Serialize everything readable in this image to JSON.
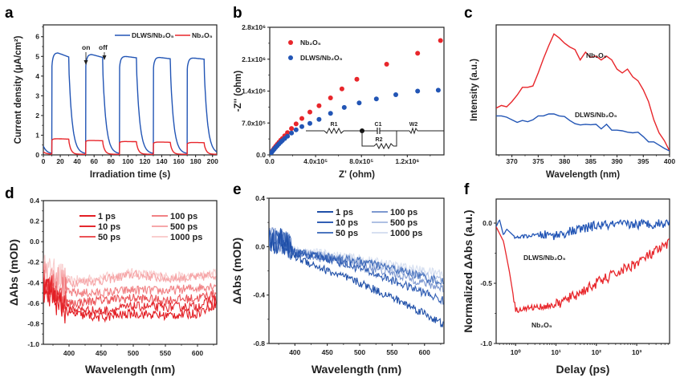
{
  "chart_data": [
    {
      "id": "a",
      "type": "line",
      "panel_label": "a",
      "xlabel": "Irradiation time (s)",
      "ylabel": "Current density (μA/cm²)",
      "xlim": [
        0,
        205
      ],
      "ylim": [
        0,
        6.6
      ],
      "xticks": [
        0,
        20,
        40,
        60,
        80,
        100,
        120,
        140,
        160,
        180,
        200
      ],
      "yticks": [
        0,
        1,
        2,
        3,
        4,
        5,
        6
      ],
      "legend": "top-right",
      "on_off_cycles": [
        [
          10,
          30
        ],
        [
          50,
          70
        ],
        [
          90,
          110
        ],
        [
          130,
          150
        ],
        [
          170,
          190
        ]
      ],
      "annotations": [
        {
          "text": "on",
          "x": 50,
          "y": 4.5
        },
        {
          "text": "off",
          "x": 70,
          "y": 4.95
        }
      ],
      "series": [
        {
          "name": "DLWS/Nb₂O₅",
          "color": "#2255b5",
          "plateau_start": [
            4.5,
            4.5,
            4.45,
            4.4,
            4.35
          ],
          "plateau_peak": [
            5.18,
            5.1,
            5.0,
            4.95,
            4.92
          ],
          "plateau_end": [
            4.97,
            4.95,
            4.93,
            4.88,
            4.86
          ],
          "baseline_start": 0.45,
          "baseline": 0.05
        },
        {
          "name": "Nb₂O₅",
          "color": "#e8262b",
          "plateau_start": [
            0.75,
            0.68,
            0.62,
            0.58,
            0.55
          ],
          "plateau_peak": [
            0.82,
            0.73,
            0.68,
            0.65,
            0.63
          ],
          "plateau_end": [
            0.8,
            0.72,
            0.67,
            0.64,
            0.62
          ],
          "baseline_start": 0.15,
          "baseline": 0.03
        }
      ]
    },
    {
      "id": "b",
      "type": "scatter",
      "panel_label": "b",
      "xlabel": "Z' (ohm)",
      "ylabel": "-Z'' (ohm)",
      "xlim": [
        0,
        1520000
      ],
      "ylim": [
        0,
        2800000
      ],
      "xticks": [
        0,
        400000,
        800000,
        1200000
      ],
      "xtick_labels": [
        "0.0",
        "4.0x10⁵",
        "8.0x10⁵",
        "1.2x10⁶"
      ],
      "yticks": [
        0,
        700000,
        1400000,
        2100000,
        2800000
      ],
      "ytick_labels": [
        "0.0",
        "7.0x10⁵",
        "1.4x10⁶",
        "2.1x10⁶",
        "2.8x10⁶"
      ],
      "legend": "top-left",
      "series": [
        {
          "name": "Nb₂O₅",
          "color": "#e8262b",
          "x": [
            5000,
            12000,
            20000,
            30000,
            40000,
            52000,
            65000,
            80000,
            95000,
            110000,
            130000,
            155000,
            190000,
            230000,
            280000,
            350000,
            430000,
            530000,
            630000,
            760000,
            1020000,
            1290000,
            1490000
          ],
          "y": [
            20000,
            50000,
            80000,
            115000,
            150000,
            190000,
            230000,
            275000,
            320000,
            360000,
            420000,
            490000,
            580000,
            680000,
            800000,
            940000,
            1080000,
            1250000,
            1450000,
            1660000,
            1990000,
            2230000,
            2510000
          ]
        },
        {
          "name": "DLWS/Nb₂O₅",
          "color": "#2255b5",
          "x": [
            5000,
            12000,
            20000,
            30000,
            40000,
            52000,
            65000,
            80000,
            95000,
            110000,
            130000,
            155000,
            190000,
            230000,
            280000,
            350000,
            430000,
            530000,
            650000,
            780000,
            930000,
            1100000,
            1290000,
            1470000
          ],
          "y": [
            15000,
            40000,
            70000,
            100000,
            130000,
            165000,
            200000,
            240000,
            280000,
            315000,
            360000,
            410000,
            480000,
            550000,
            620000,
            690000,
            780000,
            910000,
            1040000,
            1140000,
            1230000,
            1320000,
            1400000,
            1420000
          ]
        }
      ],
      "inset_circuit": {
        "elements": [
          "R1",
          "C1",
          "R2",
          "W2"
        ]
      }
    },
    {
      "id": "c",
      "type": "line",
      "panel_label": "c",
      "xlabel": "Wavelength (nm)",
      "ylabel": "Intensity (a.u.)",
      "xlim": [
        367,
        400
      ],
      "ylim": [
        0,
        1
      ],
      "xticks": [
        370,
        375,
        380,
        385,
        390,
        395,
        400
      ],
      "yticks": [],
      "legend": "inline",
      "series": [
        {
          "name": "Nb₂O₅",
          "color": "#e8262b",
          "x": [
            367,
            368,
            369,
            370,
            371,
            372,
            373,
            374,
            375,
            376,
            377,
            378,
            379,
            380,
            381,
            382,
            383,
            384,
            385,
            386,
            387,
            388,
            389,
            390,
            391,
            392,
            393,
            394,
            395,
            396,
            397,
            398,
            399,
            400
          ],
          "y": [
            0.36,
            0.38,
            0.37,
            0.41,
            0.46,
            0.52,
            0.52,
            0.53,
            0.63,
            0.74,
            0.84,
            0.93,
            0.9,
            0.86,
            0.83,
            0.81,
            0.73,
            0.79,
            0.75,
            0.76,
            0.73,
            0.76,
            0.73,
            0.66,
            0.63,
            0.66,
            0.6,
            0.57,
            0.5,
            0.41,
            0.27,
            0.17,
            0.11,
            0.03
          ]
        },
        {
          "name": "DLWS/Nb₂O₅",
          "color": "#2255b5",
          "x": [
            367,
            368,
            369,
            370,
            371,
            372,
            373,
            374,
            375,
            376,
            377,
            378,
            379,
            380,
            381,
            382,
            383,
            384,
            385,
            386,
            387,
            388,
            389,
            390,
            391,
            392,
            393,
            394,
            395,
            396,
            397,
            398,
            399,
            400
          ],
          "y": [
            0.3,
            0.3,
            0.29,
            0.27,
            0.25,
            0.265,
            0.255,
            0.27,
            0.3,
            0.3,
            0.315,
            0.315,
            0.3,
            0.295,
            0.265,
            0.24,
            0.23,
            0.235,
            0.232,
            0.235,
            0.2,
            0.235,
            0.19,
            0.19,
            0.185,
            0.175,
            0.17,
            0.175,
            0.14,
            0.1,
            0.1,
            0.075,
            0.05,
            0.03
          ]
        }
      ]
    },
    {
      "id": "d",
      "type": "line",
      "panel_label": "d",
      "xlabel": "Wavelength (nm)",
      "ylabel": "ΔAbs (mOD)",
      "xlim": [
        360,
        630
      ],
      "ylim": [
        -1.0,
        0.4
      ],
      "xticks": [
        400,
        450,
        500,
        550,
        600
      ],
      "yticks": [
        -1.0,
        -0.8,
        -0.6,
        -0.4,
        -0.2,
        0.0,
        0.2,
        0.4
      ],
      "ytick_labels": [
        "-1.0",
        "-0.8",
        "-0.6",
        "-0.4",
        "-0.2",
        "0.0",
        "0.2",
        "0.4"
      ],
      "legend": "top",
      "series": [
        {
          "name": "1 ps",
          "color": "#e31e24",
          "opacity": 1.0,
          "level_at": {
            "360": -0.45,
            "400": -0.7,
            "450": -0.74,
            "500": -0.7,
            "550": -0.72,
            "600": -0.7,
            "630": -0.6
          }
        },
        {
          "name": "10 ps",
          "color": "#e31e24",
          "opacity": 0.95,
          "level_at": {
            "360": -0.45,
            "400": -0.65,
            "450": -0.68,
            "500": -0.63,
            "550": -0.64,
            "600": -0.63,
            "630": -0.55
          }
        },
        {
          "name": "50 ps",
          "color": "#e8353a",
          "opacity": 0.85,
          "level_at": {
            "360": -0.4,
            "400": -0.6,
            "450": -0.57,
            "500": -0.55,
            "550": -0.57,
            "600": -0.55,
            "630": -0.5
          }
        },
        {
          "name": "100 ps",
          "color": "#ef6b6f",
          "opacity": 0.85,
          "level_at": {
            "360": -0.35,
            "400": -0.5,
            "450": -0.5,
            "500": -0.47,
            "550": -0.48,
            "600": -0.45,
            "630": -0.42
          }
        },
        {
          "name": "500 ps",
          "color": "#f4999b",
          "opacity": 0.85,
          "level_at": {
            "360": -0.3,
            "400": -0.4,
            "450": -0.38,
            "500": -0.32,
            "550": -0.36,
            "600": -0.35,
            "630": -0.32
          }
        },
        {
          "name": "1000 ps",
          "color": "#f8c5c6",
          "opacity": 0.85,
          "level_at": {
            "360": -0.25,
            "400": -0.38,
            "450": -0.35,
            "500": -0.3,
            "550": -0.34,
            "600": -0.34,
            "630": -0.3
          }
        }
      ]
    },
    {
      "id": "e",
      "type": "line",
      "panel_label": "e",
      "xlabel": "Wavelength (nm)",
      "ylabel": "ΔAbs (mOD)",
      "xlim": [
        360,
        630
      ],
      "ylim": [
        -0.8,
        0.4
      ],
      "xticks": [
        400,
        450,
        500,
        550,
        600
      ],
      "yticks": [
        -0.8,
        -0.4,
        0.0,
        0.4
      ],
      "ytick_labels": [
        "-0.8",
        "-0.4",
        "0.0",
        "0.4"
      ],
      "legend": "top",
      "series": [
        {
          "name": "1 ps",
          "color": "#1f4fa8",
          "opacity": 1.0,
          "level_at": {
            "360": 0.05,
            "380": 0.05,
            "400": -0.08,
            "450": -0.2,
            "500": -0.3,
            "550": -0.42,
            "600": -0.55,
            "630": -0.65
          }
        },
        {
          "name": "10 ps",
          "color": "#2756b0",
          "opacity": 0.95,
          "level_at": {
            "360": 0.05,
            "380": 0.05,
            "400": -0.05,
            "450": -0.1,
            "500": -0.18,
            "550": -0.28,
            "600": -0.38,
            "630": -0.45
          }
        },
        {
          "name": "50 ps",
          "color": "#3a67b8",
          "opacity": 0.9,
          "level_at": {
            "360": 0.05,
            "380": 0.05,
            "400": -0.05,
            "450": -0.08,
            "500": -0.12,
            "550": -0.18,
            "600": -0.25,
            "630": -0.3
          }
        },
        {
          "name": "100 ps",
          "color": "#6686c8",
          "opacity": 0.85,
          "level_at": {
            "360": 0.05,
            "380": 0.05,
            "400": -0.05,
            "450": -0.1,
            "500": -0.15,
            "550": -0.22,
            "600": -0.3,
            "630": -0.35
          }
        },
        {
          "name": "500 ps",
          "color": "#9bb0dc",
          "opacity": 0.8,
          "level_at": {
            "360": 0.05,
            "380": 0.05,
            "400": -0.04,
            "450": -0.08,
            "500": -0.12,
            "550": -0.18,
            "600": -0.24,
            "630": -0.28
          }
        },
        {
          "name": "1000 ps",
          "color": "#cdd8ee",
          "opacity": 0.8,
          "level_at": {
            "360": 0.05,
            "380": 0.05,
            "400": -0.03,
            "450": -0.06,
            "500": -0.1,
            "550": -0.15,
            "600": -0.2,
            "630": -0.22
          }
        }
      ]
    },
    {
      "id": "f",
      "type": "line",
      "panel_label": "f",
      "xlabel": "Delay (ps)",
      "ylabel": "Normalized ΔAbs (a.u.)",
      "xscale": "log",
      "xlim": [
        0.33,
        6500
      ],
      "ylim": [
        -1.0,
        0.2
      ],
      "xticks": [
        1,
        10,
        100,
        1000
      ],
      "xtick_labels": [
        "10⁰",
        "10¹",
        "10²",
        "10³"
      ],
      "yticks": [
        -1.0,
        -0.5,
        0.0
      ],
      "ytick_labels": [
        "-1.0",
        "-0.5",
        "0.0"
      ],
      "legend": "inline",
      "series": [
        {
          "name": "DLWS/Nb₂O₅",
          "color": "#2255b5",
          "level_at": {
            "0.33": -0.03,
            "0.4": 0.03,
            "0.5": -0.1,
            "0.6": -0.05,
            "1": -0.12,
            "3": -0.1,
            "10": -0.1,
            "100": -0.02,
            "1000": -0.01,
            "6500": 0.0
          }
        },
        {
          "name": "Nb₂O₅",
          "color": "#e8262b",
          "level_at": {
            "0.33": -0.03,
            "0.5": -0.15,
            "0.7": -0.4,
            "1": -0.72,
            "3": -0.7,
            "10": -0.68,
            "30": -0.6,
            "100": -0.5,
            "300": -0.42,
            "1000": -0.33,
            "6500": -0.17
          }
        }
      ]
    }
  ],
  "legend_labels": {
    "a_dlws": "DLWS/Nb₂O₅",
    "a_nb": "Nb₂O₅",
    "b_nb": "Nb₂O₅",
    "b_dlws": "DLWS/Nb₂O₅",
    "c_nb": "Nb₂O₅",
    "c_dlws": "DLWS/Nb₂O₅",
    "f_dlws": "DLWS/Nb₂O₅",
    "f_nb": "Nb₂O₅"
  },
  "circuit_labels": {
    "r1": "R1",
    "c1": "C1",
    "r2": "R2",
    "w2": "W2"
  },
  "annotations": {
    "on": "on",
    "off": "off"
  }
}
